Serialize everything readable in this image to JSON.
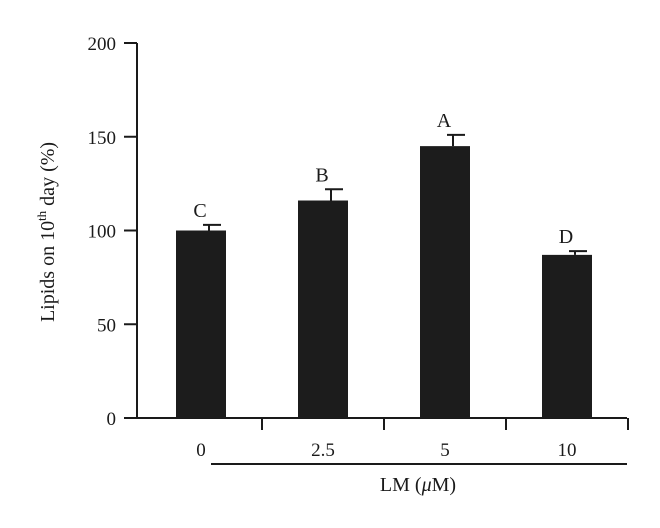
{
  "chart_data": {
    "type": "bar",
    "categories": [
      "0",
      "2.5",
      "5",
      "10"
    ],
    "values": [
      100,
      116,
      145,
      87
    ],
    "error_plus": [
      3,
      6,
      6,
      2
    ],
    "significance_letters": [
      "C",
      "B",
      "A",
      "D"
    ],
    "ylim": [
      0,
      200
    ],
    "yticks": [
      0,
      50,
      100,
      150,
      200
    ],
    "ylabel": {
      "prefix": "Lipids on 10",
      "superscript": "th",
      "suffix": " day (%)"
    },
    "xlabel": {
      "prefix": "LM (",
      "italic": "μ",
      "suffix": "M)"
    },
    "grid": false,
    "legend": "none",
    "bar_color": "#1c1c1c"
  }
}
